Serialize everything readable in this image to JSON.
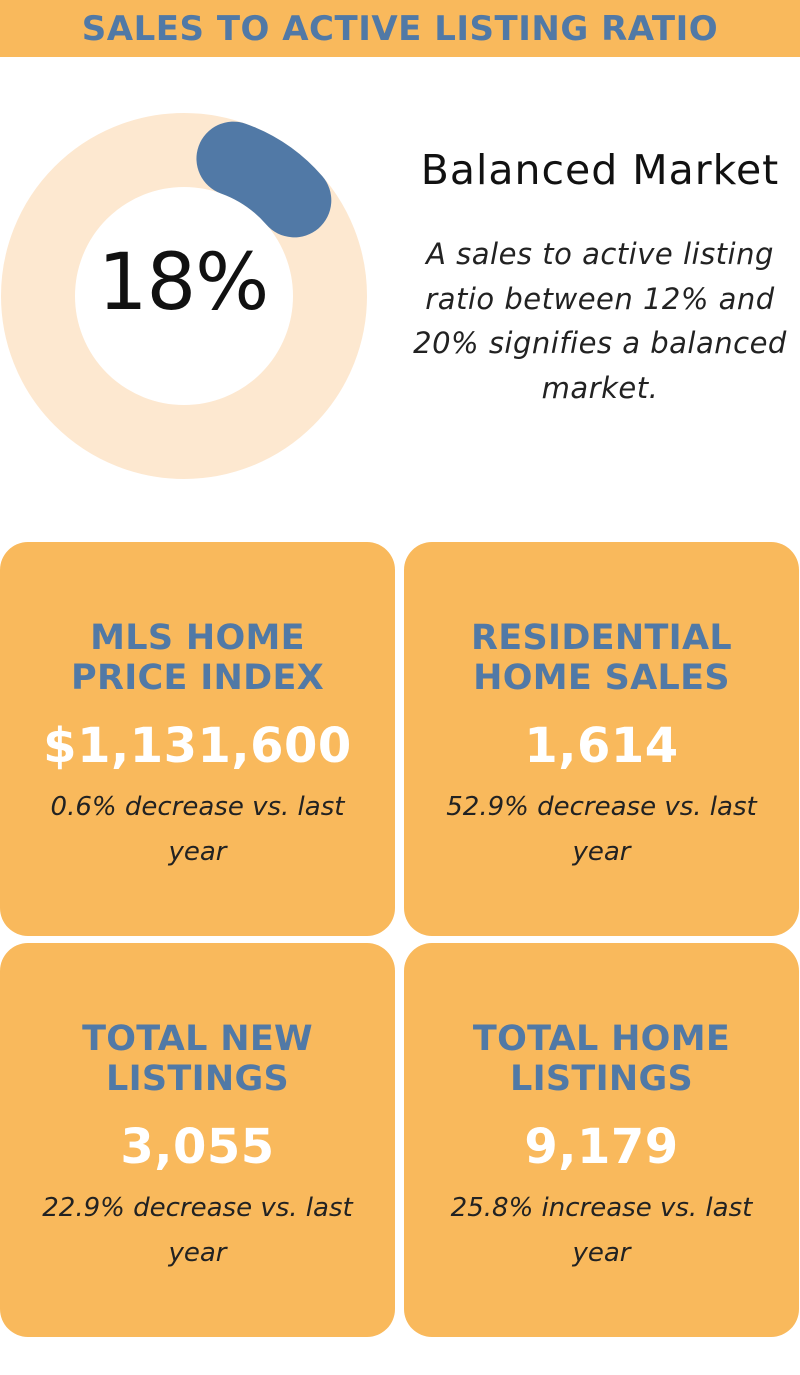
{
  "header": {
    "title": "SALES TO ACTIVE LISTING RATIO"
  },
  "ratio": {
    "value": 18,
    "label": "18%",
    "colors": {
      "track": "#fde8d0",
      "fill": "#5179a6",
      "center": "#ffffff"
    }
  },
  "market": {
    "status": "Balanced Market",
    "description": "A sales to active listing ratio between 12% and 20% signifies a balanced market."
  },
  "cards": [
    {
      "title": "MLS HOME PRICE INDEX",
      "value": "$1,131,600",
      "change": "0.6% decrease vs. last year"
    },
    {
      "title": "RESIDENTIAL HOME SALES",
      "value": "1,614",
      "change": "52.9% decrease vs. last year"
    },
    {
      "title": "TOTAL NEW LISTINGS",
      "value": "3,055",
      "change": "22.9% decrease vs. last year"
    },
    {
      "title": "TOTAL HOME LISTINGS",
      "value": "9,179",
      "change": "25.8% increase vs. last year"
    }
  ],
  "colors": {
    "accent": "#f9b95c",
    "title_blue": "#5179a6",
    "value_white": "#ffffff"
  }
}
